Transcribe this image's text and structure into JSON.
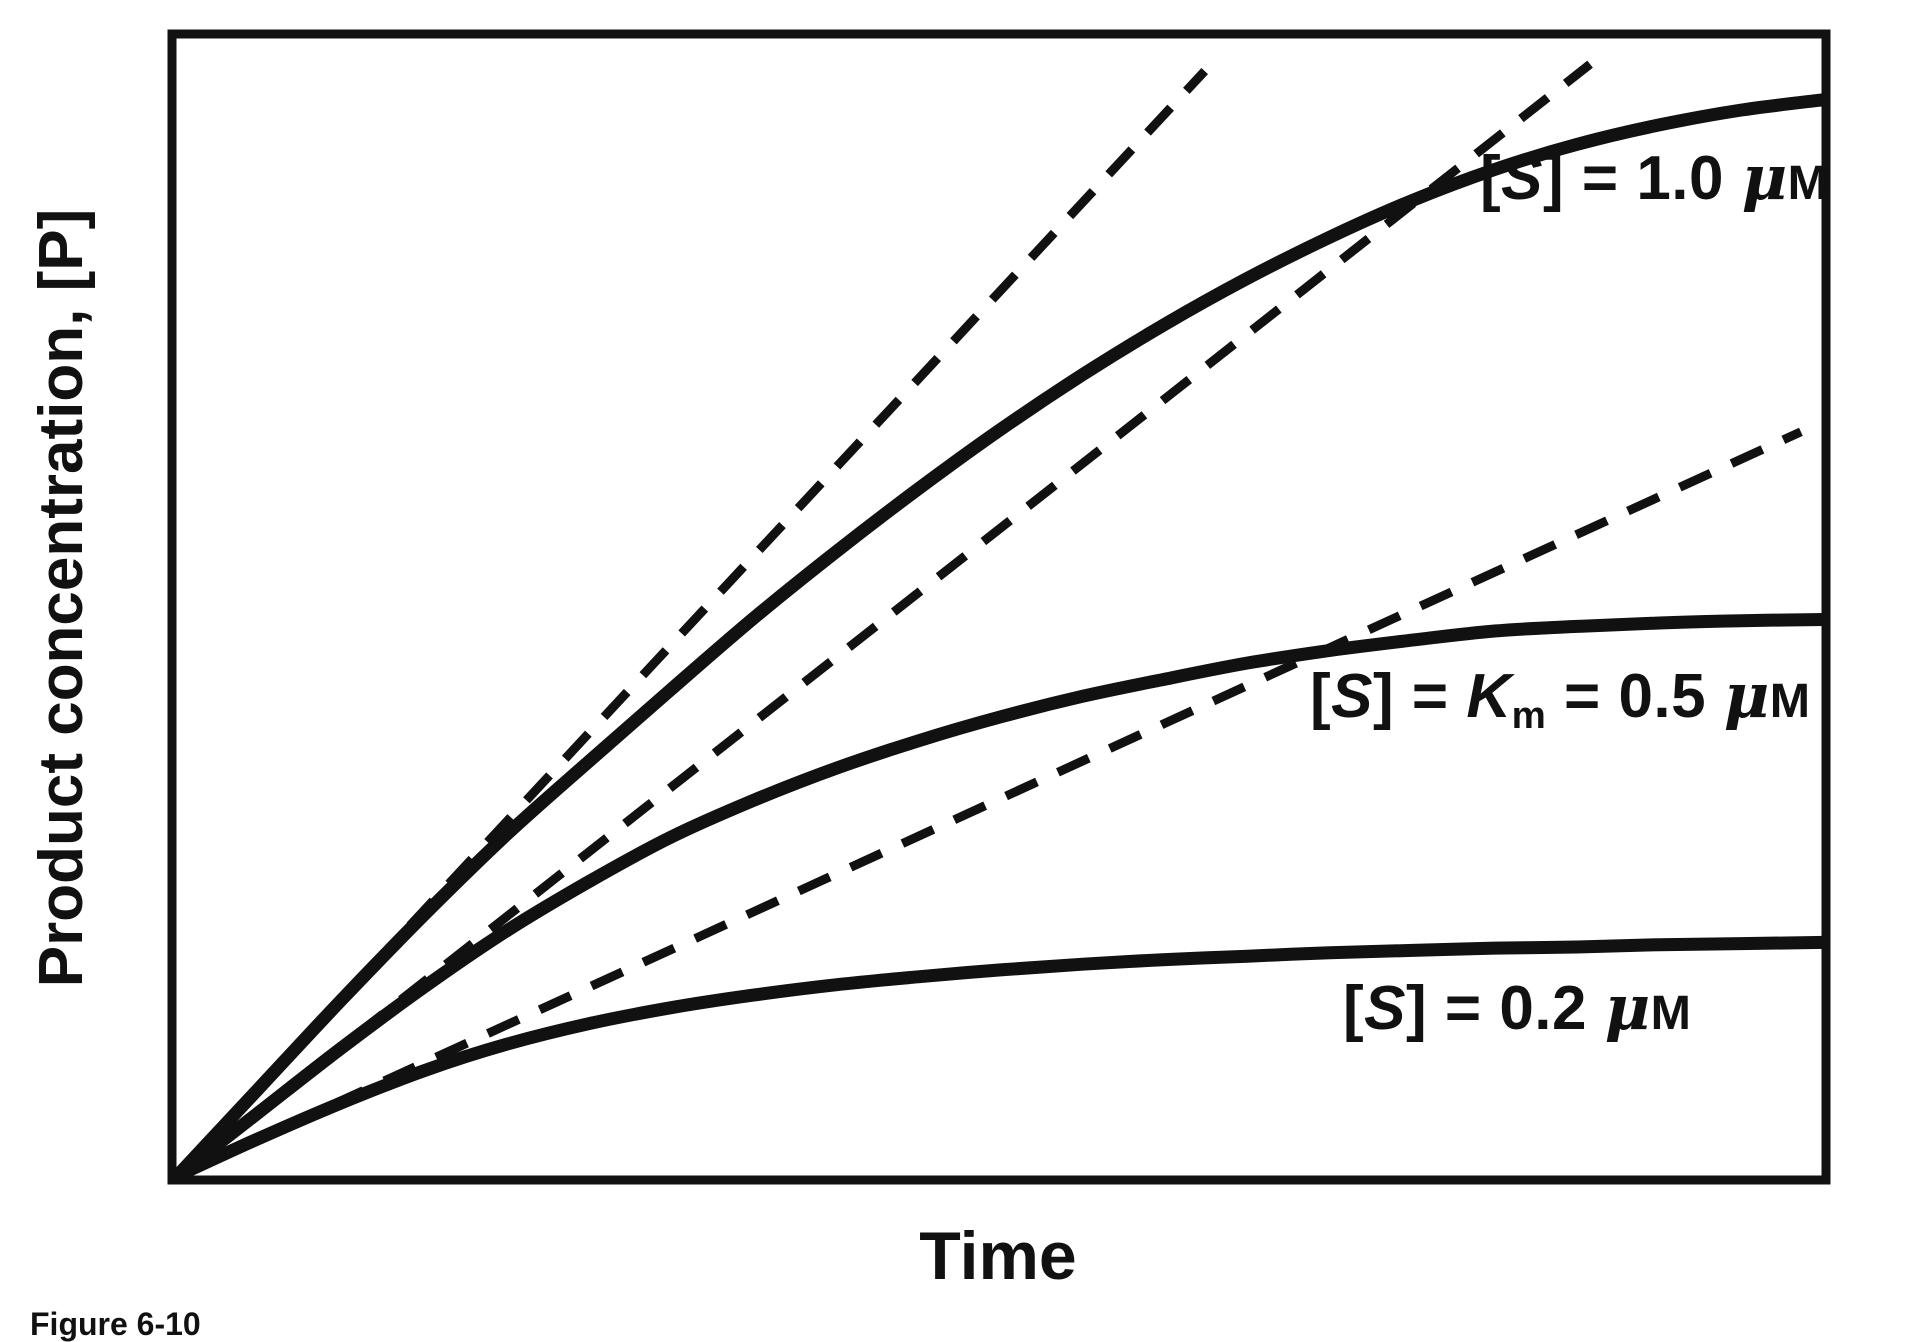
{
  "figure": {
    "caption": "Figure 6-10",
    "xlabel": "Time",
    "ylabel": "Product concentration, [P]"
  },
  "labels": {
    "high": {
      "pre": "[",
      "s": "S",
      "mid": "] = 1.0 ",
      "mu": "μ",
      "unit": "M"
    },
    "km": {
      "pre": "[",
      "s": "S",
      "eq1": "] = ",
      "k": "K",
      "ksub": "m",
      "eq2": " = 0.5 ",
      "mu": "μ",
      "unit": "M"
    },
    "low": {
      "pre": "[",
      "s": "S",
      "mid": "] = 0.2 ",
      "mu": "μ",
      "unit": "M"
    }
  },
  "colors": {
    "ink": "#111111",
    "background": "#ffffff"
  },
  "chart_data": {
    "type": "line",
    "title": "",
    "xlabel": "Time",
    "ylabel": "Product concentration, [P]",
    "caption": "Figure 6-10",
    "grid": false,
    "x_axis": {
      "range_normalized": [
        0,
        1
      ],
      "tick_labels": "none"
    },
    "y_axis": {
      "range_normalized": [
        0,
        1
      ],
      "tick_labels": "none"
    },
    "x_normalized": [
      0,
      0.05,
      0.1,
      0.15,
      0.2,
      0.25,
      0.3,
      0.35,
      0.4,
      0.45,
      0.5,
      0.55,
      0.6,
      0.65,
      0.7,
      0.75,
      0.8,
      0.85,
      0.9,
      0.95,
      1.0
    ],
    "series": [
      {
        "name": "[S] = 1.0 μM",
        "kind": "progress-curve",
        "line_style": "solid",
        "y_normalized": [
          0,
          0.077,
          0.154,
          0.228,
          0.298,
          0.362,
          0.425,
          0.487,
          0.545,
          0.6,
          0.652,
          0.7,
          0.744,
          0.784,
          0.82,
          0.852,
          0.879,
          0.901,
          0.918,
          0.931,
          0.94
        ]
      },
      {
        "name": "[S] = Km = 0.5 μM",
        "kind": "progress-curve",
        "line_style": "solid",
        "y_normalized": [
          0,
          0.056,
          0.112,
          0.165,
          0.214,
          0.257,
          0.296,
          0.328,
          0.356,
          0.38,
          0.401,
          0.419,
          0.434,
          0.448,
          0.459,
          0.468,
          0.476,
          0.48,
          0.483,
          0.485,
          0.486
        ]
      },
      {
        "name": "[S] = 0.2 μM",
        "kind": "progress-curve",
        "line_style": "solid",
        "y_normalized": [
          0,
          0.033,
          0.064,
          0.092,
          0.115,
          0.133,
          0.147,
          0.158,
          0.167,
          0.174,
          0.18,
          0.185,
          0.189,
          0.192,
          0.195,
          0.197,
          0.199,
          0.2,
          0.202,
          0.203,
          0.204
        ]
      },
      {
        "name": "initial-velocity tangent, [S] = 1.0 μM",
        "kind": "tangent",
        "line_style": "dashed",
        "points_normalized": [
          [
            0,
            0
          ],
          [
            0.624,
            0.965
          ]
        ]
      },
      {
        "name": "initial-velocity tangent, [S] = 0.5 μM",
        "kind": "tangent",
        "line_style": "dashed",
        "points_normalized": [
          [
            0,
            0
          ],
          [
            0.858,
            0.971
          ]
        ]
      },
      {
        "name": "initial-velocity tangent, [S] = 0.2 μM",
        "kind": "tangent",
        "line_style": "dashed",
        "points_normalized": [
          [
            0,
            0
          ],
          [
            0.986,
            0.65
          ]
        ]
      }
    ],
    "annotations": [
      "[S] = 1.0 μM",
      "[S] = Km = 0.5 μM",
      "[S] = 0.2 μM"
    ]
  }
}
